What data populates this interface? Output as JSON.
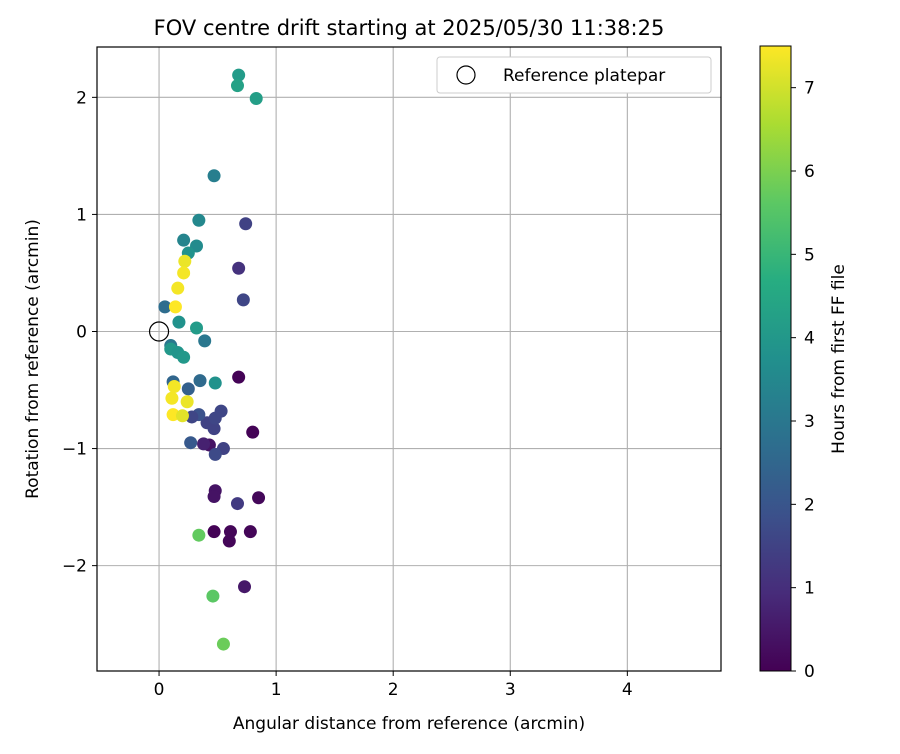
{
  "chart_data": {
    "type": "scatter",
    "title": "FOV centre drift starting at 2025/05/30 11:38:25",
    "xlabel": "Angular distance from reference (arcmin)",
    "ylabel": "Rotation from reference (arcmin)",
    "xlim": [
      -0.53,
      4.8
    ],
    "ylim": [
      -2.9,
      2.43
    ],
    "xticks": [
      0,
      1,
      2,
      3,
      4
    ],
    "yticks": [
      -2,
      -1,
      0,
      1,
      2
    ],
    "xtick_labels": [
      "0",
      "1",
      "2",
      "3",
      "4"
    ],
    "ytick_labels": [
      "−2",
      "−1",
      "0",
      "1",
      "2"
    ],
    "grid": true,
    "legend": {
      "placement": "top-right",
      "entries": [
        {
          "label": "Reference platepar",
          "marker": "open-circle"
        }
      ]
    },
    "reference_point": {
      "x": 0,
      "y": 0
    },
    "colorbar": {
      "label": "Hours from first FF file",
      "colormap": "viridis",
      "range": [
        0,
        7.5
      ],
      "ticks": [
        0,
        1,
        2,
        3,
        4,
        5,
        6,
        7
      ],
      "tick_labels": [
        "0",
        "1",
        "2",
        "3",
        "4",
        "5",
        "6",
        "7"
      ],
      "stops": [
        "#440154",
        "#472c7a",
        "#3b518b",
        "#2c718e",
        "#21908d",
        "#27ad81",
        "#5cc863",
        "#aadc32",
        "#fde725"
      ]
    },
    "points": [
      {
        "x": 0.68,
        "y": -0.39,
        "c": 0.05
      },
      {
        "x": 0.8,
        "y": -0.86,
        "c": 0.05
      },
      {
        "x": 0.85,
        "y": -1.42,
        "c": 0.15
      },
      {
        "x": 0.78,
        "y": -1.71,
        "c": 0.1
      },
      {
        "x": 0.61,
        "y": -1.71,
        "c": 0.1
      },
      {
        "x": 0.6,
        "y": -1.79,
        "c": 0.1
      },
      {
        "x": 0.47,
        "y": -1.71,
        "c": 0.05
      },
      {
        "x": 0.48,
        "y": -1.36,
        "c": 0.4
      },
      {
        "x": 0.47,
        "y": -1.41,
        "c": 0.4
      },
      {
        "x": 0.73,
        "y": -2.18,
        "c": 0.5
      },
      {
        "x": 0.43,
        "y": -0.97,
        "c": 0.4
      },
      {
        "x": 0.38,
        "y": -0.96,
        "c": 0.7
      },
      {
        "x": 0.67,
        "y": -1.47,
        "c": 1.3
      },
      {
        "x": 0.55,
        "y": -1.0,
        "c": 1.5
      },
      {
        "x": 0.48,
        "y": -1.05,
        "c": 1.7
      },
      {
        "x": 0.47,
        "y": -0.83,
        "c": 1.5
      },
      {
        "x": 0.41,
        "y": -0.78,
        "c": 1.5
      },
      {
        "x": 0.48,
        "y": -0.74,
        "c": 1.6
      },
      {
        "x": 0.53,
        "y": -0.68,
        "c": 1.6
      },
      {
        "x": 0.34,
        "y": -0.71,
        "c": 1.9
      },
      {
        "x": 0.28,
        "y": -0.73,
        "c": 1.6
      },
      {
        "x": 0.27,
        "y": -0.95,
        "c": 2.1
      },
      {
        "x": 0.25,
        "y": -0.49,
        "c": 2.3
      },
      {
        "x": 0.35,
        "y": -0.42,
        "c": 2.6
      },
      {
        "x": 0.12,
        "y": -0.43,
        "c": 2.5
      },
      {
        "x": 0.68,
        "y": 0.54,
        "c": 1.1
      },
      {
        "x": 0.74,
        "y": 0.92,
        "c": 1.5
      },
      {
        "x": 0.72,
        "y": 0.27,
        "c": 1.6
      },
      {
        "x": 0.47,
        "y": 1.33,
        "c": 3.2
      },
      {
        "x": 0.34,
        "y": 0.95,
        "c": 3.5
      },
      {
        "x": 0.21,
        "y": 0.78,
        "c": 3.4
      },
      {
        "x": 0.32,
        "y": 0.73,
        "c": 3.6
      },
      {
        "x": 0.25,
        "y": 0.67,
        "c": 3.8
      },
      {
        "x": 0.05,
        "y": 0.21,
        "c": 2.7
      },
      {
        "x": 0.39,
        "y": -0.08,
        "c": 3.0
      },
      {
        "x": 0.17,
        "y": 0.08,
        "c": 3.8
      },
      {
        "x": 0.32,
        "y": 0.03,
        "c": 4.1
      },
      {
        "x": 0.1,
        "y": -0.12,
        "c": 3.0
      },
      {
        "x": 0.1,
        "y": -0.15,
        "c": 4.0
      },
      {
        "x": 0.16,
        "y": -0.18,
        "c": 3.9
      },
      {
        "x": 0.21,
        "y": -0.22,
        "c": 4.0
      },
      {
        "x": 0.48,
        "y": -0.44,
        "c": 3.8
      },
      {
        "x": 0.68,
        "y": 2.19,
        "c": 4.1
      },
      {
        "x": 0.67,
        "y": 2.1,
        "c": 4.3
      },
      {
        "x": 0.83,
        "y": 1.99,
        "c": 4.2
      },
      {
        "x": 0.34,
        "y": -1.74,
        "c": 5.7
      },
      {
        "x": 0.46,
        "y": -2.26,
        "c": 5.6
      },
      {
        "x": 0.55,
        "y": -2.67,
        "c": 5.8
      },
      {
        "x": 0.22,
        "y": 0.6,
        "c": 7.3
      },
      {
        "x": 0.21,
        "y": 0.5,
        "c": 7.4
      },
      {
        "x": 0.16,
        "y": 0.37,
        "c": 7.4
      },
      {
        "x": 0.14,
        "y": 0.21,
        "c": 7.5
      },
      {
        "x": 0.13,
        "y": -0.47,
        "c": 7.4
      },
      {
        "x": 0.11,
        "y": -0.57,
        "c": 7.4
      },
      {
        "x": 0.24,
        "y": -0.6,
        "c": 7.3
      },
      {
        "x": 0.12,
        "y": -0.71,
        "c": 7.5
      },
      {
        "x": 0.2,
        "y": -0.72,
        "c": 7.2
      }
    ]
  }
}
